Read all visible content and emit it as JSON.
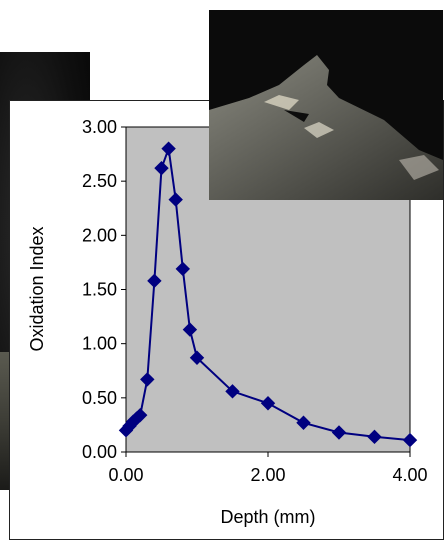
{
  "chart_data": {
    "type": "line",
    "title": "",
    "xlabel": "Depth (mm)",
    "ylabel": "Oxidation Index",
    "xlim": [
      0,
      4
    ],
    "ylim": [
      0,
      3
    ],
    "x_ticks": [
      "0.00",
      "2.00",
      "4.00"
    ],
    "y_ticks": [
      "0.00",
      "0.50",
      "1.00",
      "1.50",
      "2.00",
      "2.50",
      "3.00"
    ],
    "grid": false,
    "legend": "none",
    "plot_background": "#c0c0c0",
    "series": [
      {
        "color": "#000080",
        "marker": "diamond",
        "x": [
          0.0,
          0.05,
          0.1,
          0.15,
          0.2,
          0.3,
          0.4,
          0.5,
          0.6,
          0.7,
          0.8,
          0.9,
          1.0,
          1.5,
          2.0,
          2.5,
          3.0,
          3.5,
          4.0
        ],
        "y": [
          0.2,
          0.24,
          0.28,
          0.31,
          0.34,
          0.67,
          1.58,
          2.62,
          2.8,
          2.33,
          1.69,
          1.13,
          0.87,
          0.56,
          0.45,
          0.27,
          0.18,
          0.14,
          0.11
        ]
      }
    ]
  }
}
